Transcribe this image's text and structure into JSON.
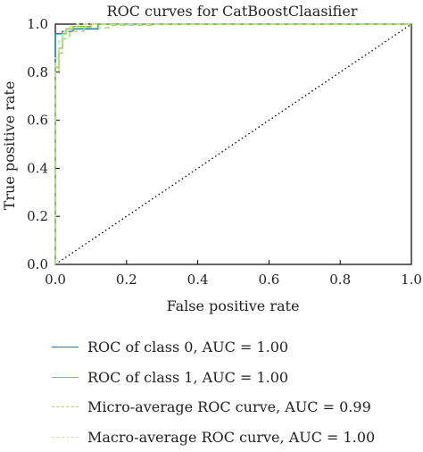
{
  "chart_data": {
    "type": "line",
    "title": "ROC curves for CatBoostClaasifier",
    "xlabel": "False positive rate",
    "ylabel": "True positive rate",
    "xlim": [
      0,
      1
    ],
    "ylim": [
      0,
      1
    ],
    "xticks": [
      "0.0",
      "0.2",
      "0.4",
      "0.6",
      "0.8",
      "1.0"
    ],
    "yticks": [
      "0.0",
      "0.2",
      "0.4",
      "0.6",
      "0.8",
      "1.0"
    ],
    "grid": false,
    "legend_position": "below plot",
    "reference_line": {
      "x": [
        0,
        1
      ],
      "y": [
        0,
        1
      ],
      "style": "dotted",
      "color": "#000000"
    },
    "series": [
      {
        "name": "ROC of class 0, AUC = 1.00",
        "color": "#1f77b4",
        "style": "solid",
        "x": [
          0.0,
          0.0,
          0.02,
          0.02,
          0.05,
          0.05,
          0.12,
          0.12,
          1.0
        ],
        "y": [
          0.0,
          0.96,
          0.96,
          0.97,
          0.97,
          0.98,
          0.98,
          1.0,
          1.0
        ]
      },
      {
        "name": "ROC of class 1, AUC = 1.00",
        "color": "#8bc34a",
        "style": "solid",
        "x": [
          0.0,
          0.0,
          0.01,
          0.01,
          0.02,
          0.02,
          0.03,
          0.03,
          0.05,
          0.05,
          0.1,
          0.1,
          1.0
        ],
        "y": [
          0.0,
          0.82,
          0.82,
          0.9,
          0.9,
          0.96,
          0.96,
          0.98,
          0.98,
          0.99,
          0.99,
          1.0,
          1.0
        ]
      },
      {
        "name": "Micro-average ROC curve, AUC = 0.99",
        "color": "#a5d46a",
        "style": "dashed",
        "x": [
          0.0,
          0.0,
          0.01,
          0.01,
          0.02,
          0.02,
          0.04,
          0.04,
          0.08,
          0.08,
          0.16,
          0.16,
          0.28,
          0.28,
          1.0
        ],
        "y": [
          0.0,
          0.8,
          0.8,
          0.88,
          0.88,
          0.94,
          0.94,
          0.97,
          0.97,
          0.985,
          0.985,
          0.995,
          0.995,
          1.0,
          1.0
        ]
      },
      {
        "name": "Macro-average ROC curve, AUC = 1.00",
        "color": "#c5e1a5",
        "style": "dashed",
        "x": [
          0.0,
          0.0,
          0.01,
          0.01,
          0.02,
          0.02,
          0.04,
          0.04,
          0.06,
          0.06,
          1.0
        ],
        "y": [
          0.0,
          0.86,
          0.86,
          0.93,
          0.93,
          0.97,
          0.97,
          0.99,
          0.99,
          1.0,
          1.0
        ]
      }
    ]
  }
}
